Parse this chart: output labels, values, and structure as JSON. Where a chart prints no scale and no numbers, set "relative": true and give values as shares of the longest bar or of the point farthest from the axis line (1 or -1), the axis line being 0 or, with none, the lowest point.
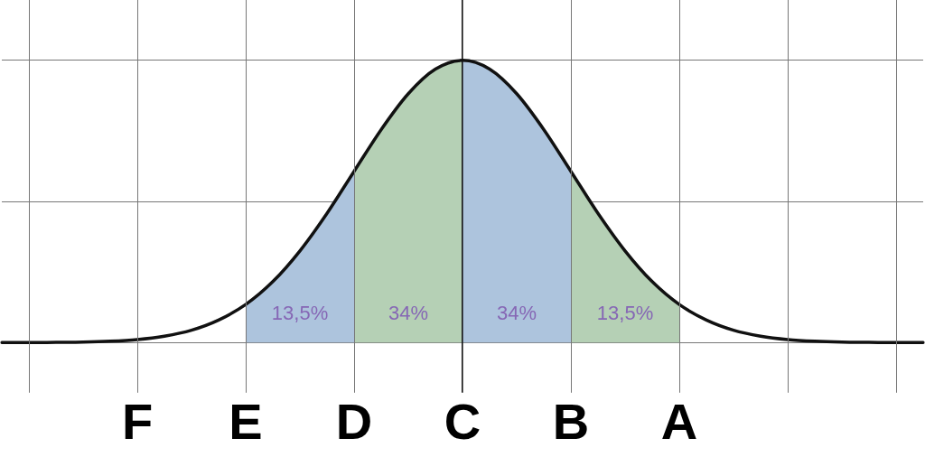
{
  "chart_data": {
    "type": "line",
    "relative": true,
    "categories": [
      null,
      null,
      null,
      null,
      null,
      "F",
      null,
      null,
      null,
      "E",
      null,
      null,
      null,
      "D",
      null,
      null,
      null,
      "C",
      null,
      null,
      null,
      "B",
      null,
      null,
      null,
      "A",
      null,
      null,
      null,
      null,
      null,
      null,
      null,
      null,
      null
    ],
    "series": [
      {
        "color": "#111111",
        "values": [
          0,
          0,
          0.001,
          0.002,
          0.005,
          0.011,
          0.023,
          0.044,
          0.08,
          0.135,
          0.216,
          0.325,
          0.458,
          0.607,
          0.755,
          0.882,
          0.969,
          1,
          0.969,
          0.882,
          0.755,
          0.607,
          0.458,
          0.325,
          0.216,
          0.135,
          0.08,
          0.044,
          0.023,
          0.011,
          0.005,
          0.002,
          0.001,
          0,
          0
        ]
      },
      {
        "type": "area",
        "name": "13,5%",
        "color": "#adc4dd",
        "values": [
          null,
          null,
          null,
          null,
          null,
          null,
          null,
          null,
          null,
          0.135,
          0.216,
          0.325,
          0.458,
          0.607,
          null,
          null,
          null,
          null,
          null,
          null,
          null,
          null,
          null,
          null,
          null,
          null,
          null,
          null,
          null,
          null,
          null,
          null,
          null,
          null,
          null
        ]
      },
      {
        "type": "area",
        "name": "34%",
        "color": "#b5d0b5",
        "values": [
          null,
          null,
          null,
          null,
          null,
          null,
          null,
          null,
          null,
          null,
          null,
          null,
          null,
          0.607,
          0.755,
          0.882,
          0.969,
          1,
          null,
          null,
          null,
          null,
          null,
          null,
          null,
          null,
          null,
          null,
          null,
          null,
          null,
          null,
          null,
          null,
          null
        ]
      },
      {
        "type": "area",
        "name": "34%",
        "color": "#adc4dd",
        "values": [
          null,
          null,
          null,
          null,
          null,
          null,
          null,
          null,
          null,
          null,
          null,
          null,
          null,
          null,
          null,
          null,
          null,
          1,
          0.969,
          0.882,
          0.755,
          0.607,
          null,
          null,
          null,
          null,
          null,
          null,
          null,
          null,
          null,
          null,
          null,
          null,
          null
        ]
      },
      {
        "type": "area",
        "name": "13,5%",
        "color": "#b5d0b5",
        "values": [
          null,
          null,
          null,
          null,
          null,
          null,
          null,
          null,
          null,
          null,
          null,
          null,
          null,
          null,
          null,
          null,
          null,
          null,
          null,
          null,
          null,
          0.607,
          0.458,
          0.325,
          0.216,
          0.135,
          null,
          null,
          null,
          null,
          null,
          null,
          null,
          null,
          null
        ]
      }
    ],
    "grid": true,
    "marker": "none",
    "line_style": "solid"
  }
}
